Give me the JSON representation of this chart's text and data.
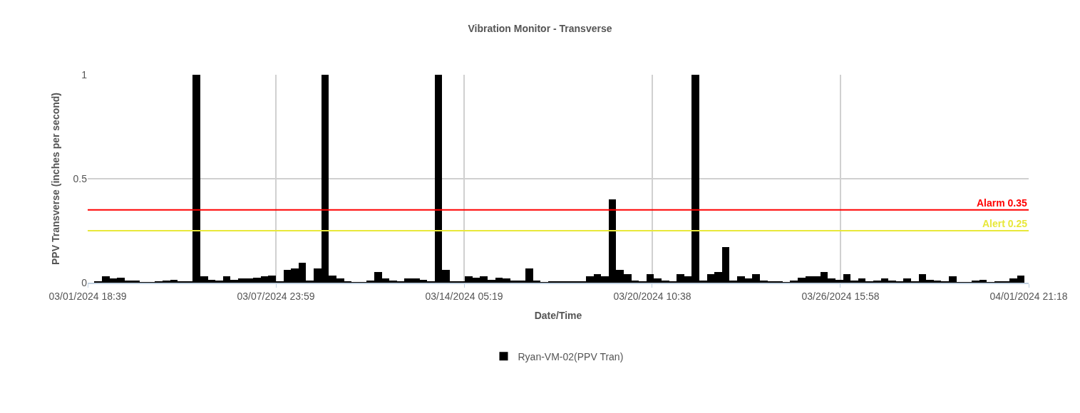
{
  "chart_data": {
    "type": "bar",
    "title": "Vibration Monitor - Transverse",
    "xlabel": "Date/Time",
    "ylabel": "PPV Transverse (inches per second)",
    "x": [
      "2024-03-02T03:00",
      "2024-03-02T09:00",
      "2024-03-02T15:00",
      "2024-03-02T21:00",
      "2024-03-03T03:00",
      "2024-03-03T09:00",
      "2024-03-03T15:00",
      "2024-03-03T21:00",
      "2024-03-04T03:00",
      "2024-03-04T09:00",
      "2024-03-04T15:00",
      "2024-03-04T21:00",
      "2024-03-05T03:00",
      "2024-03-05T09:00",
      "2024-03-05T15:00",
      "2024-03-05T21:00",
      "2024-03-06T03:00",
      "2024-03-06T09:00",
      "2024-03-06T15:00",
      "2024-03-06T21:00",
      "2024-03-07T03:00",
      "2024-03-07T09:00",
      "2024-03-07T15:00",
      "2024-03-07T21:00",
      "2024-03-08T03:00",
      "2024-03-08T09:00",
      "2024-03-08T15:00",
      "2024-03-08T21:00",
      "2024-03-09T03:00",
      "2024-03-09T09:00",
      "2024-03-09T15:00",
      "2024-03-09T21:00",
      "2024-03-10T03:00",
      "2024-03-10T09:00",
      "2024-03-10T15:00",
      "2024-03-10T21:00",
      "2024-03-11T03:00",
      "2024-03-11T09:00",
      "2024-03-11T15:00",
      "2024-03-11T21:00",
      "2024-03-12T03:00",
      "2024-03-12T09:00",
      "2024-03-12T15:00",
      "2024-03-12T21:00",
      "2024-03-13T03:00",
      "2024-03-13T09:00",
      "2024-03-13T15:00",
      "2024-03-13T21:00",
      "2024-03-14T03:00",
      "2024-03-14T09:00",
      "2024-03-14T15:00",
      "2024-03-14T21:00",
      "2024-03-15T03:00",
      "2024-03-15T09:00",
      "2024-03-15T15:00",
      "2024-03-15T21:00",
      "2024-03-16T03:00",
      "2024-03-16T09:00",
      "2024-03-16T15:00",
      "2024-03-16T21:00",
      "2024-03-17T03:00",
      "2024-03-17T09:00",
      "2024-03-17T15:00",
      "2024-03-17T21:00",
      "2024-03-18T03:00",
      "2024-03-18T09:00",
      "2024-03-18T15:00",
      "2024-03-18T21:00",
      "2024-03-19T03:00",
      "2024-03-19T09:00",
      "2024-03-19T15:00",
      "2024-03-19T21:00",
      "2024-03-20T03:00",
      "2024-03-20T09:00",
      "2024-03-20T15:00",
      "2024-03-20T21:00",
      "2024-03-21T03:00",
      "2024-03-21T09:00",
      "2024-03-21T15:00",
      "2024-03-21T21:00",
      "2024-03-22T03:00",
      "2024-03-22T09:00",
      "2024-03-22T15:00",
      "2024-03-22T21:00",
      "2024-03-23T03:00",
      "2024-03-23T09:00",
      "2024-03-23T15:00",
      "2024-03-23T21:00",
      "2024-03-24T03:00",
      "2024-03-24T09:00",
      "2024-03-24T15:00",
      "2024-03-24T21:00",
      "2024-03-25T03:00",
      "2024-03-25T09:00",
      "2024-03-25T15:00",
      "2024-03-25T21:00",
      "2024-03-26T03:00",
      "2024-03-26T09:00",
      "2024-03-26T15:00",
      "2024-03-26T21:00",
      "2024-03-27T03:00",
      "2024-03-27T09:00",
      "2024-03-27T15:00",
      "2024-03-27T21:00",
      "2024-03-28T03:00",
      "2024-03-28T09:00",
      "2024-03-28T15:00",
      "2024-03-28T21:00",
      "2024-03-29T03:00",
      "2024-03-29T09:00",
      "2024-03-29T15:00",
      "2024-03-29T21:00",
      "2024-03-30T03:00",
      "2024-03-30T09:00",
      "2024-03-30T15:00",
      "2024-03-30T21:00",
      "2024-03-31T03:00",
      "2024-03-31T09:00",
      "2024-03-31T15:00",
      "2024-03-31T21:00",
      "2024-04-01T03:00",
      "2024-04-01T09:00",
      "2024-04-01T15:00"
    ],
    "series": [
      {
        "name": "Ryan-VM-02(PPV Tran)",
        "color": "#000000",
        "values": [
          0.007,
          0.03,
          0.02,
          0.025,
          0.01,
          0.01,
          0.003,
          0.003,
          0.007,
          0.01,
          0.015,
          0.007,
          0.007,
          1,
          0.03,
          0.015,
          0.01,
          0.03,
          0.015,
          0.02,
          0.02,
          0.025,
          0.03,
          0.035,
          0.007,
          0.06,
          0.07,
          0.095,
          0.01,
          0.07,
          1,
          0.035,
          0.02,
          0.007,
          0.002,
          0.003,
          0.01,
          0.05,
          0.02,
          0.01,
          0.007,
          0.02,
          0.02,
          0.015,
          0.007,
          1,
          0.06,
          0.007,
          0.007,
          0.03,
          0.025,
          0.03,
          0.015,
          0.025,
          0.02,
          0.01,
          0.01,
          0.07,
          0.01,
          0.002,
          0.007,
          0.007,
          0.007,
          0.007,
          0.007,
          0.03,
          0.04,
          0.03,
          0.4,
          0.06,
          0.04,
          0.01,
          0.007,
          0.04,
          0.02,
          0.01,
          0.007,
          0.04,
          0.03,
          1,
          0.01,
          0.04,
          0.05,
          0.17,
          0.01,
          0.03,
          0.02,
          0.04,
          0.01,
          0.007,
          0.007,
          0.002,
          0.01,
          0.025,
          0.03,
          0.03,
          0.05,
          0.02,
          0.015,
          0.04,
          0.01,
          0.02,
          0.007,
          0.01,
          0.02,
          0.01,
          0.007,
          0.02,
          0.007,
          0.04,
          0.015,
          0.01,
          0.007,
          0.03,
          0.002,
          0.002,
          0.01,
          0.015,
          0.002,
          0.007,
          0.007,
          0.02,
          0.035
        ]
      }
    ],
    "xlim": [
      "2024-03-01T18:39",
      "2024-04-01T21:18"
    ],
    "xticks": [
      {
        "value": "2024-03-01T18:39",
        "label": "03/01/2024 18:39"
      },
      {
        "value": "2024-03-07T23:59",
        "label": "03/07/2024 23:59"
      },
      {
        "value": "2024-03-14T05:19",
        "label": "03/14/2024 05:19"
      },
      {
        "value": "2024-03-20T10:38",
        "label": "03/20/2024 10:38"
      },
      {
        "value": "2024-03-26T15:58",
        "label": "03/26/2024 15:58"
      },
      {
        "value": "2024-04-01T21:18",
        "label": "04/01/2024 21:18"
      }
    ],
    "ylim": [
      0,
      1
    ],
    "yticks": [
      0,
      0.5,
      1
    ],
    "ref_lines": [
      {
        "axis": "y",
        "value": 0.35,
        "label": "Alarm 0.35",
        "color": "#ff0000"
      },
      {
        "axis": "y",
        "value": 0.25,
        "label": "Alert 0.25",
        "color": "#e8e83a"
      }
    ],
    "grid": true,
    "legend": "bottom"
  }
}
